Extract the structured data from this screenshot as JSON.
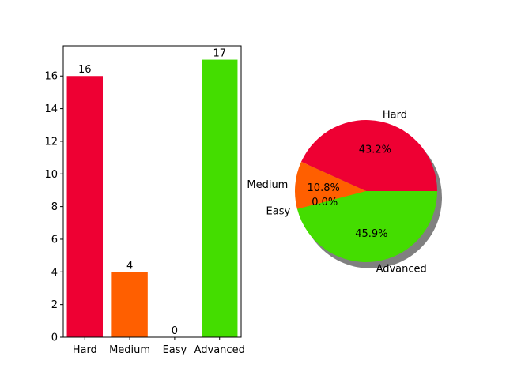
{
  "chart_data": [
    {
      "type": "bar",
      "categories": [
        "Hard",
        "Medium",
        "Easy",
        "Advanced"
      ],
      "values": [
        16,
        4,
        0,
        17
      ],
      "colors": [
        "#ee0033",
        "#ff5f00",
        "#ff5f00",
        "#44dd00"
      ],
      "ylim": [
        0,
        17.85
      ],
      "yticks": [
        0,
        2,
        4,
        6,
        8,
        10,
        12,
        14,
        16
      ],
      "data_labels": [
        "16",
        "4",
        "0",
        "17"
      ],
      "title": "",
      "xlabel": "",
      "ylabel": "",
      "grid": false
    },
    {
      "type": "pie",
      "labels": [
        "Hard",
        "Medium",
        "Easy",
        "Advanced"
      ],
      "values": [
        16,
        4,
        0,
        17
      ],
      "percent_labels": [
        "43.2%",
        "10.8%",
        "0.0%",
        "45.9%"
      ],
      "colors": [
        "#ee0033",
        "#ff5f00",
        "#ff5f00",
        "#44dd00"
      ],
      "shadow": true,
      "title": ""
    }
  ]
}
